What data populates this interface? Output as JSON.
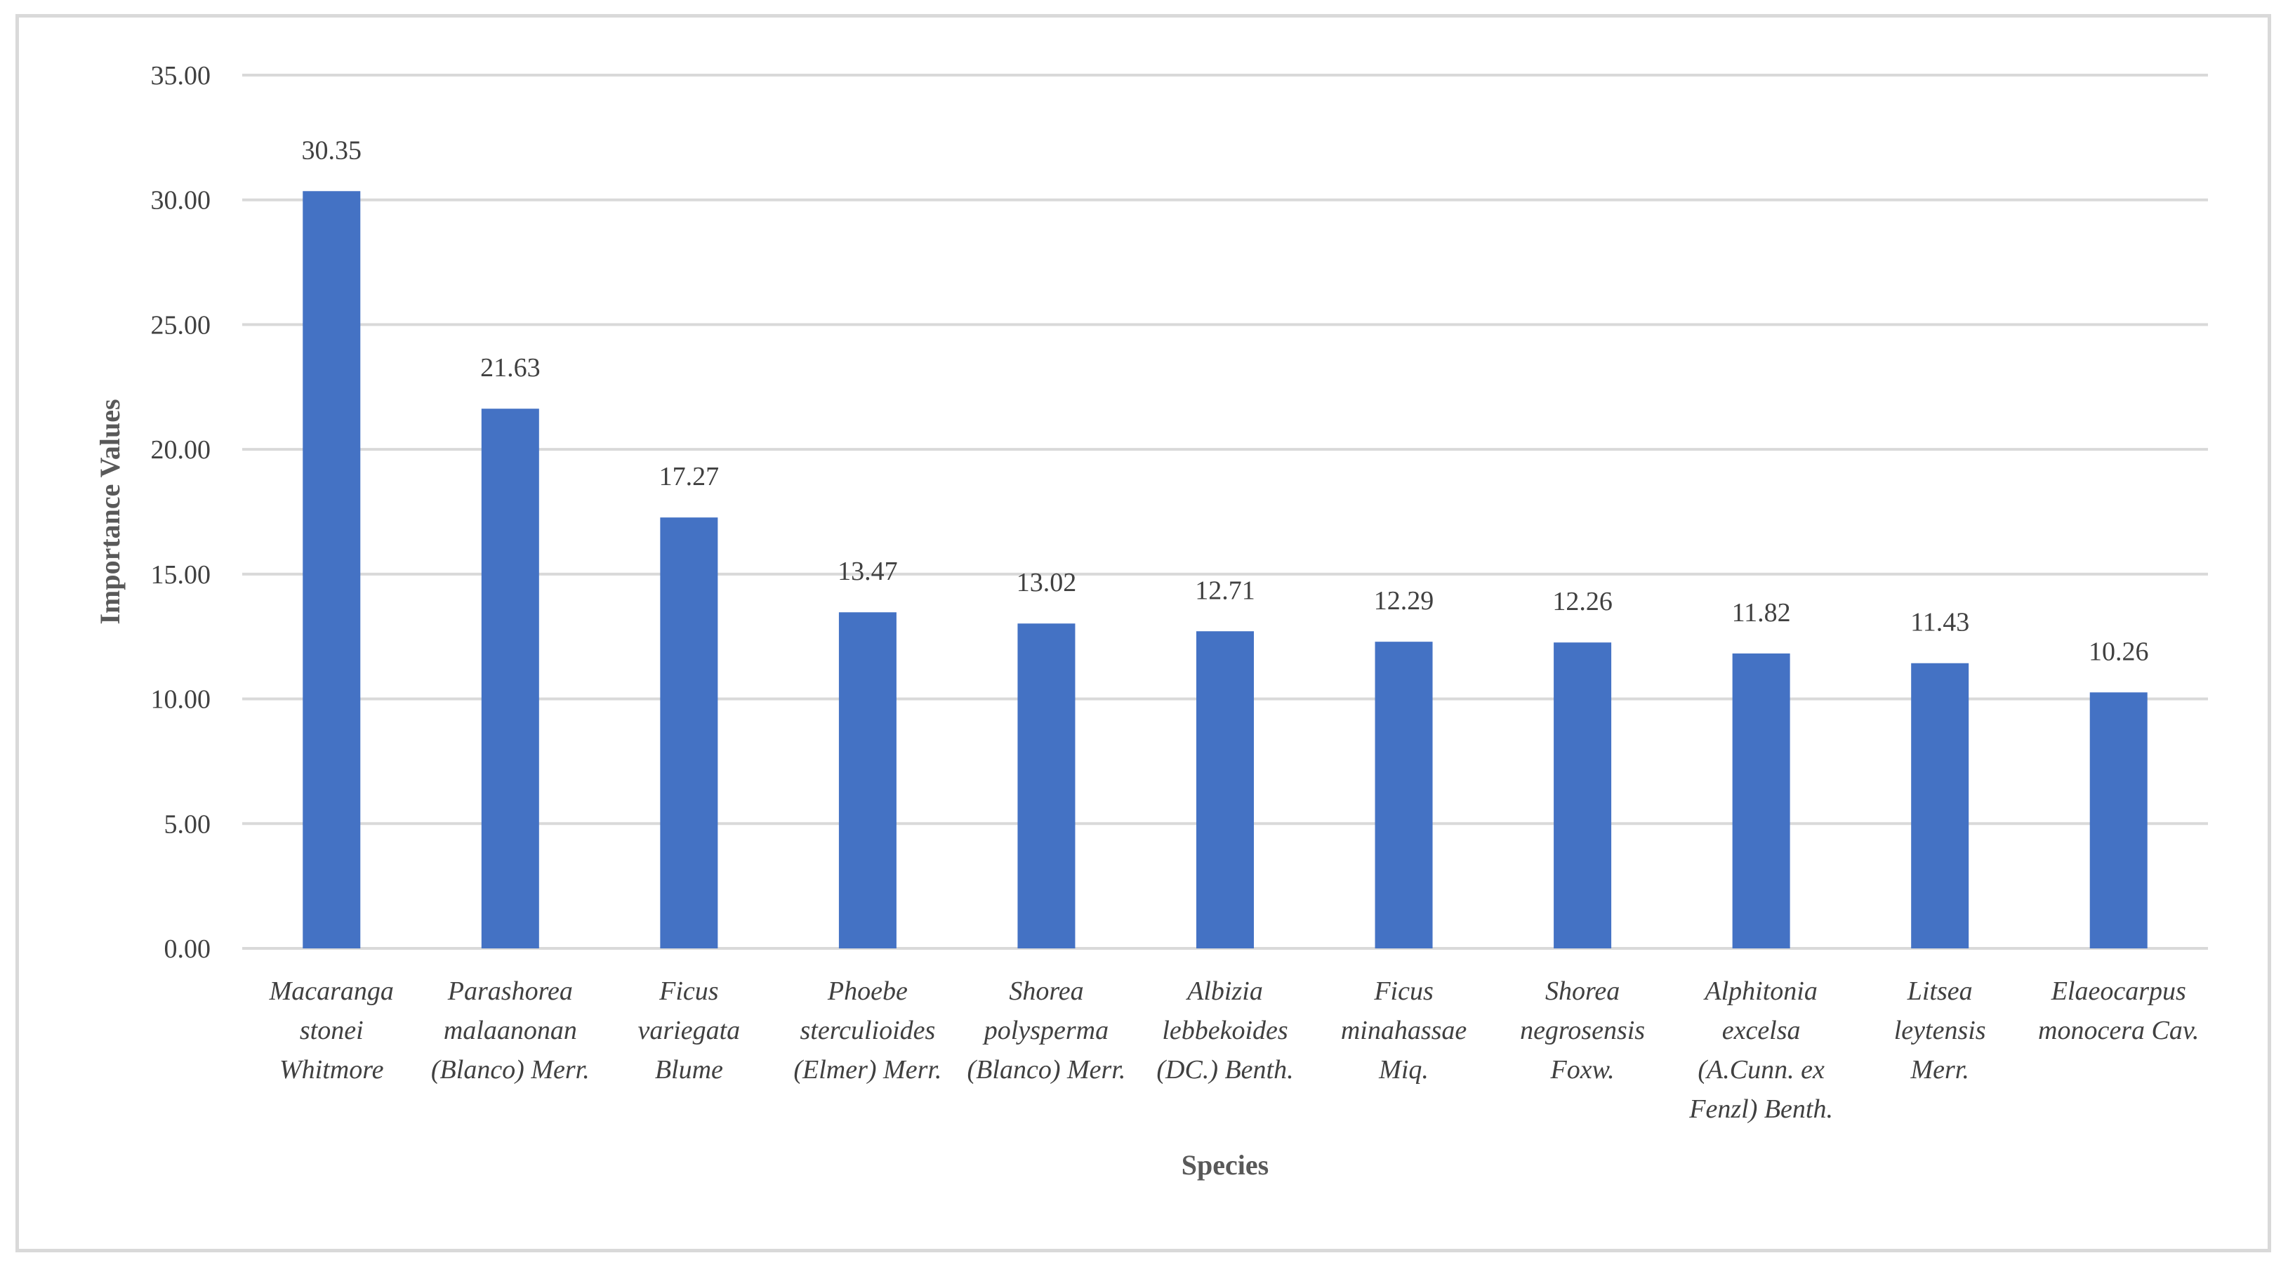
{
  "chart_data": {
    "type": "bar",
    "title": "",
    "xlabel": "Species",
    "ylabel": "Importance Values",
    "ylim": [
      0,
      35
    ],
    "yticks": [
      "0.00",
      "5.00",
      "10.00",
      "15.00",
      "20.00",
      "25.00",
      "30.00",
      "35.00"
    ],
    "grid": true,
    "legend": "none",
    "bar_color": "#4472c4",
    "categories": [
      [
        "Macaranga",
        "stonei",
        "Whitmore"
      ],
      [
        "Parashorea",
        "malaanonan",
        "(Blanco) Merr."
      ],
      [
        "Ficus",
        "variegata",
        "Blume"
      ],
      [
        "Phoebe",
        "sterculioides",
        "(Elmer) Merr."
      ],
      [
        "Shorea",
        "polysperma",
        "(Blanco) Merr."
      ],
      [
        "Albizia",
        "lebbekoides",
        "(DC.) Benth."
      ],
      [
        "Ficus",
        "minahassae",
        "Miq."
      ],
      [
        "Shorea",
        "negrosensis",
        "Foxw."
      ],
      [
        "Alphitonia",
        "excelsa",
        "(A.Cunn. ex",
        "Fenzl) Benth."
      ],
      [
        "Litsea",
        "leytensis",
        "Merr."
      ],
      [
        "Elaeocarpus",
        "monocera Cav."
      ]
    ],
    "values": [
      30.35,
      21.63,
      17.27,
      13.47,
      13.02,
      12.71,
      12.29,
      12.26,
      11.82,
      11.43,
      10.26
    ],
    "data_labels": [
      "30.35",
      "21.63",
      "17.27",
      "13.47",
      "13.02",
      "12.71",
      "12.29",
      "12.26",
      "11.82",
      "11.43",
      "10.26"
    ]
  }
}
